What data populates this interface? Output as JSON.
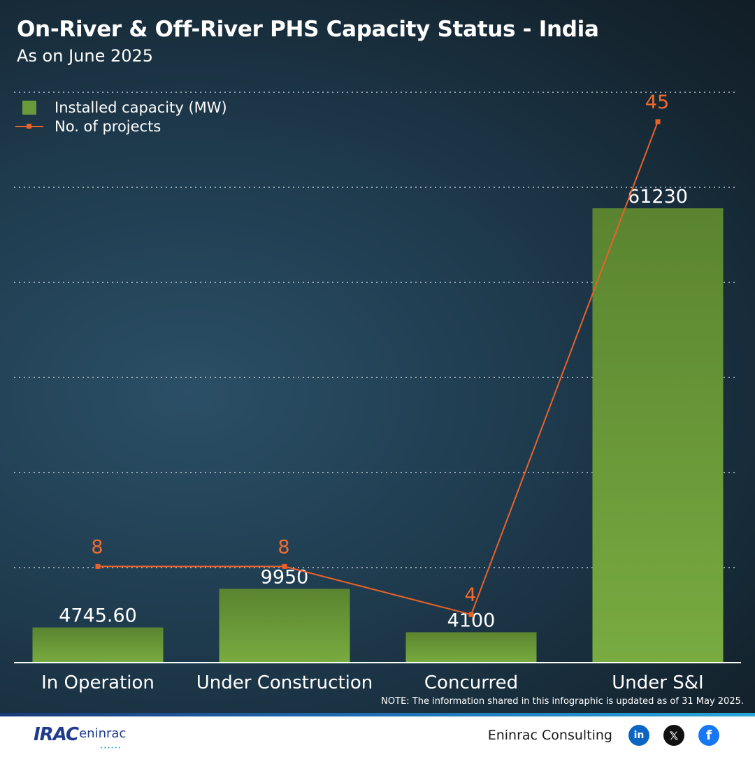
{
  "header": {
    "title": "On-River & Off-River PHS Capacity Status - India",
    "subtitle": "As on June 2025"
  },
  "legend": {
    "bar_label": "Installed capacity (MW)",
    "line_label": "No. of projects"
  },
  "colors": {
    "bar": "#6a9a3a",
    "line": "#e8622a",
    "line_label": "#f26a2e",
    "grid": "#c0ccd4"
  },
  "chart_data": {
    "type": "bar",
    "title": "On-River & Off-River PHS Capacity Status - India",
    "subtitle": "As on June 2025",
    "categories": [
      "In Operation",
      "Under Construction",
      "Concurred",
      "Under S&I"
    ],
    "series": [
      {
        "name": "Installed capacity (MW)",
        "type": "bar",
        "axis": "left",
        "values": [
          4745.6,
          9950,
          4100,
          61230
        ],
        "labels": [
          "4745.60",
          "9950",
          "4100",
          "61230"
        ]
      },
      {
        "name": "No. of projects",
        "type": "line",
        "axis": "right",
        "values": [
          8,
          8,
          4,
          45
        ],
        "labels": [
          "8",
          "8",
          "4",
          "45"
        ]
      }
    ],
    "ylim_left": [
      0,
      60000
    ],
    "ylim_right": [
      0,
      50
    ],
    "grid": true,
    "legend_position": "top-left"
  },
  "note": "NOTE: The information shared in this infographic is updated as of 31 May 2025.",
  "footer": {
    "logo_main": "IRAC",
    "logo_sub": "eninrac",
    "brand": "Eninrac Consulting",
    "social": [
      {
        "name": "linkedin",
        "glyph": "in"
      },
      {
        "name": "x",
        "glyph": "𝕏"
      },
      {
        "name": "facebook",
        "glyph": "f"
      }
    ]
  }
}
